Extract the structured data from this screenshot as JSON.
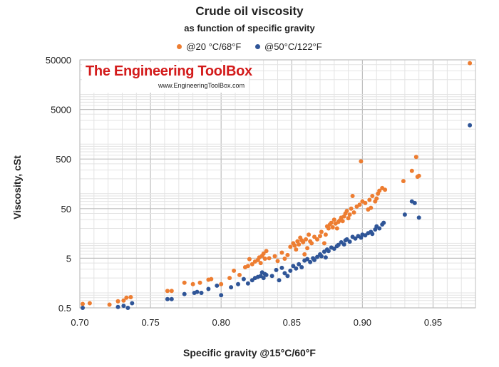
{
  "watermark": {
    "name": "The Engineering ToolBox",
    "url": "www.EngineeringToolBox.com"
  },
  "chart_data": {
    "type": "scatter",
    "title": "Crude oil viscosity",
    "subtitle": "as function of specific gravity",
    "xlabel": "Specific gravity @15°C/60°F",
    "ylabel": "Viscosity, cSt",
    "x_ticks": [
      "0.70",
      "0.75",
      "0.80",
      "0.85",
      "0.90",
      "0.95"
    ],
    "y_ticks": [
      "0.5",
      "5",
      "50",
      "500",
      "5000",
      "50000"
    ],
    "xlim": [
      0.7,
      0.98
    ],
    "ylim": [
      0.5,
      50000
    ],
    "y_scale": "log",
    "grid": true,
    "legend_position": "top",
    "series": [
      {
        "name": "@20 °C/68°F",
        "color": "#ED7D31",
        "points": [
          [
            0.702,
            0.6
          ],
          [
            0.707,
            0.62
          ],
          [
            0.721,
            0.58
          ],
          [
            0.727,
            0.68
          ],
          [
            0.731,
            0.7
          ],
          [
            0.733,
            0.8
          ],
          [
            0.736,
            0.82
          ],
          [
            0.762,
            1.1
          ],
          [
            0.765,
            1.1
          ],
          [
            0.774,
            1.6
          ],
          [
            0.78,
            1.5
          ],
          [
            0.785,
            1.6
          ],
          [
            0.791,
            1.85
          ],
          [
            0.793,
            1.9
          ],
          [
            0.8,
            1.5
          ],
          [
            0.806,
            2.0
          ],
          [
            0.809,
            2.8
          ],
          [
            0.813,
            2.3
          ],
          [
            0.817,
            3.3
          ],
          [
            0.819,
            3.5
          ],
          [
            0.82,
            4.8
          ],
          [
            0.822,
            3.8
          ],
          [
            0.824,
            4.3
          ],
          [
            0.826,
            4.6
          ],
          [
            0.827,
            5.2
          ],
          [
            0.828,
            4.0
          ],
          [
            0.829,
            5.6
          ],
          [
            0.83,
            6.2
          ],
          [
            0.831,
            4.9
          ],
          [
            0.832,
            7.0
          ],
          [
            0.834,
            5.0
          ],
          [
            0.838,
            5.5
          ],
          [
            0.84,
            4.4
          ],
          [
            0.843,
            6.5
          ],
          [
            0.845,
            4.9
          ],
          [
            0.847,
            5.8
          ],
          [
            0.849,
            8.5
          ],
          [
            0.851,
            10.0
          ],
          [
            0.852,
            9.0
          ],
          [
            0.853,
            7.5
          ],
          [
            0.854,
            11.0
          ],
          [
            0.855,
            9.5
          ],
          [
            0.856,
            13.0
          ],
          [
            0.857,
            11.5
          ],
          [
            0.858,
            10.5
          ],
          [
            0.859,
            6.0
          ],
          [
            0.86,
            12.0
          ],
          [
            0.861,
            8.0
          ],
          [
            0.862,
            15.0
          ],
          [
            0.863,
            11.0
          ],
          [
            0.864,
            10.0
          ],
          [
            0.866,
            13.5
          ],
          [
            0.868,
            12.0
          ],
          [
            0.87,
            14.0
          ],
          [
            0.871,
            17.0
          ],
          [
            0.873,
            10.0
          ],
          [
            0.874,
            15.0
          ],
          [
            0.875,
            22.0
          ],
          [
            0.876,
            20.0
          ],
          [
            0.877,
            24.0
          ],
          [
            0.878,
            26.0
          ],
          [
            0.879,
            21.0
          ],
          [
            0.88,
            30.0
          ],
          [
            0.881,
            25.0
          ],
          [
            0.882,
            20.0
          ],
          [
            0.883,
            27.0
          ],
          [
            0.884,
            29.0
          ],
          [
            0.885,
            33.0
          ],
          [
            0.886,
            28.0
          ],
          [
            0.887,
            35.0
          ],
          [
            0.888,
            40.0
          ],
          [
            0.889,
            45.0
          ],
          [
            0.89,
            32.0
          ],
          [
            0.891,
            38.0
          ],
          [
            0.892,
            50.0
          ],
          [
            0.893,
            90.0
          ],
          [
            0.894,
            42.0
          ],
          [
            0.896,
            55.0
          ],
          [
            0.898,
            60.0
          ],
          [
            0.899,
            450.0
          ],
          [
            0.9,
            70.0
          ],
          [
            0.902,
            65.0
          ],
          [
            0.904,
            48.0
          ],
          [
            0.905,
            75.0
          ],
          [
            0.906,
            52.0
          ],
          [
            0.907,
            90.0
          ],
          [
            0.909,
            70.0
          ],
          [
            0.91,
            80.0
          ],
          [
            0.911,
            100.0
          ],
          [
            0.912,
            115.0
          ],
          [
            0.914,
            130.0
          ],
          [
            0.916,
            120.0
          ],
          [
            0.929,
            180.0
          ],
          [
            0.935,
            290.0
          ],
          [
            0.938,
            550.0
          ],
          [
            0.939,
            220.0
          ],
          [
            0.94,
            230.0
          ],
          [
            0.976,
            43000.0
          ]
        ]
      },
      {
        "name": "@50°C/122°F",
        "color": "#2F5597",
        "points": [
          [
            0.702,
            0.5
          ],
          [
            0.727,
            0.52
          ],
          [
            0.731,
            0.55
          ],
          [
            0.734,
            0.5
          ],
          [
            0.737,
            0.62
          ],
          [
            0.762,
            0.75
          ],
          [
            0.765,
            0.75
          ],
          [
            0.774,
            0.95
          ],
          [
            0.781,
            1.0
          ],
          [
            0.783,
            1.05
          ],
          [
            0.786,
            1.0
          ],
          [
            0.791,
            1.2
          ],
          [
            0.797,
            1.4
          ],
          [
            0.8,
            0.9
          ],
          [
            0.807,
            1.3
          ],
          [
            0.812,
            1.5
          ],
          [
            0.816,
            1.9
          ],
          [
            0.819,
            1.55
          ],
          [
            0.822,
            1.8
          ],
          [
            0.824,
            2.0
          ],
          [
            0.826,
            2.1
          ],
          [
            0.828,
            2.2
          ],
          [
            0.829,
            2.6
          ],
          [
            0.83,
            2.0
          ],
          [
            0.831,
            2.4
          ],
          [
            0.832,
            2.3
          ],
          [
            0.836,
            2.2
          ],
          [
            0.839,
            2.9
          ],
          [
            0.841,
            1.8
          ],
          [
            0.843,
            3.2
          ],
          [
            0.845,
            2.5
          ],
          [
            0.847,
            2.2
          ],
          [
            0.849,
            2.8
          ],
          [
            0.851,
            3.5
          ],
          [
            0.853,
            3.1
          ],
          [
            0.855,
            3.8
          ],
          [
            0.857,
            3.3
          ],
          [
            0.859,
            4.5
          ],
          [
            0.861,
            4.8
          ],
          [
            0.863,
            4.2
          ],
          [
            0.865,
            5.0
          ],
          [
            0.866,
            4.6
          ],
          [
            0.868,
            5.3
          ],
          [
            0.87,
            6.0
          ],
          [
            0.871,
            5.5
          ],
          [
            0.873,
            6.8
          ],
          [
            0.874,
            5.2
          ],
          [
            0.875,
            7.5
          ],
          [
            0.876,
            7.0
          ],
          [
            0.878,
            8.2
          ],
          [
            0.88,
            7.8
          ],
          [
            0.882,
            8.8
          ],
          [
            0.883,
            9.3
          ],
          [
            0.885,
            10.5
          ],
          [
            0.887,
            9.5
          ],
          [
            0.888,
            11.5
          ],
          [
            0.889,
            12.0
          ],
          [
            0.891,
            10.8
          ],
          [
            0.893,
            13.5
          ],
          [
            0.895,
            12.5
          ],
          [
            0.897,
            14.0
          ],
          [
            0.899,
            13.0
          ],
          [
            0.9,
            15.0
          ],
          [
            0.902,
            14.5
          ],
          [
            0.904,
            16.0
          ],
          [
            0.906,
            17.0
          ],
          [
            0.907,
            15.5
          ],
          [
            0.909,
            19.0
          ],
          [
            0.91,
            22.0
          ],
          [
            0.912,
            20.0
          ],
          [
            0.914,
            24.0
          ],
          [
            0.915,
            26.0
          ],
          [
            0.93,
            38.0
          ],
          [
            0.935,
            70.0
          ],
          [
            0.937,
            65.0
          ],
          [
            0.94,
            33.0
          ],
          [
            0.976,
            2400.0
          ]
        ]
      }
    ]
  }
}
